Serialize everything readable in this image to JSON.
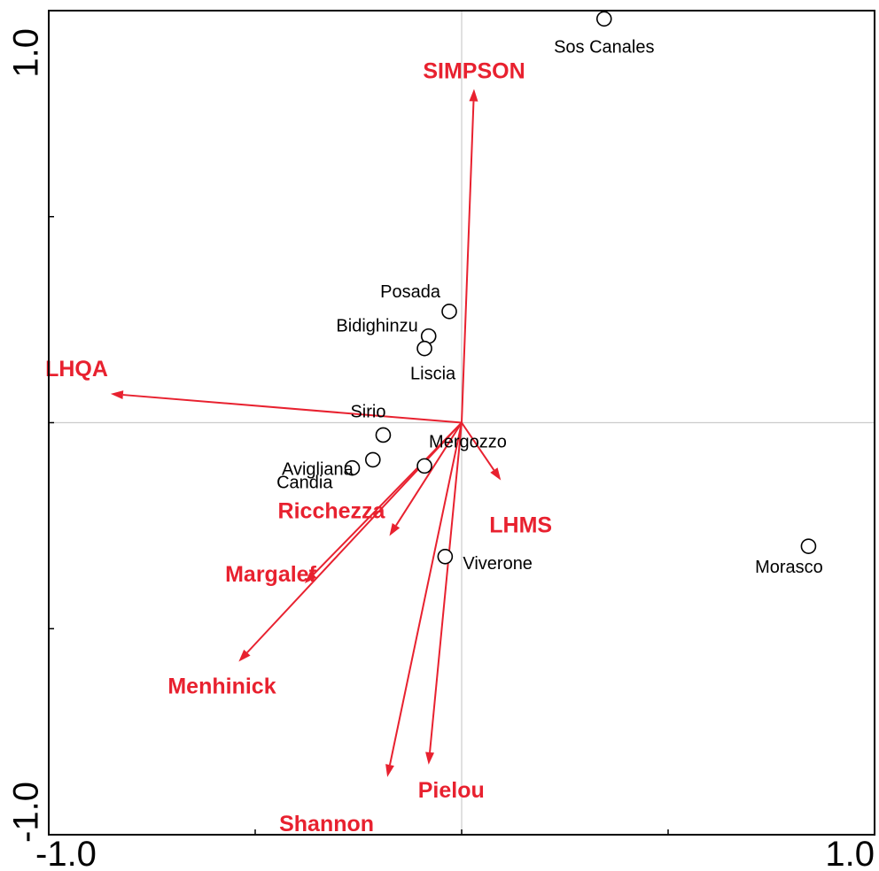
{
  "chart_data": {
    "type": "scatter",
    "subtype": "ordination-biplot",
    "title": "",
    "xlabel": "",
    "ylabel": "",
    "xlim": [
      -1.0,
      1.0
    ],
    "ylim": [
      -1.0,
      1.0
    ],
    "x_tick_labels": [
      {
        "value": -1.0,
        "label": "-1.0"
      },
      {
        "value": 1.0,
        "label": "1.0"
      }
    ],
    "y_tick_labels": [
      {
        "value": 1.0,
        "label": "1.0"
      },
      {
        "value": -1.0,
        "label": "-1.0"
      }
    ],
    "minor_ticks": [
      -0.5,
      0.0,
      0.5
    ],
    "grid": false,
    "origin_lines": true,
    "colors": {
      "sites": "#000000",
      "variables": "#e8212f",
      "axes": "#000000",
      "origin_lines": "#cccccc"
    },
    "sites": [
      {
        "name": "Sos Canales",
        "x": 0.345,
        "y": 0.98
      },
      {
        "name": "Posada",
        "x": -0.03,
        "y": 0.27
      },
      {
        "name": "Bidighinzu",
        "x": -0.08,
        "y": 0.21
      },
      {
        "name": "Liscia",
        "x": -0.09,
        "y": 0.18
      },
      {
        "name": "Sirio",
        "x": -0.19,
        "y": -0.03
      },
      {
        "name": "Avigliana",
        "x": -0.215,
        "y": -0.09
      },
      {
        "name": "Candia",
        "x": -0.265,
        "y": -0.11
      },
      {
        "name": "Mergozzo",
        "x": -0.09,
        "y": -0.105
      },
      {
        "name": "Viverone",
        "x": -0.04,
        "y": -0.325
      },
      {
        "name": "Morasco",
        "x": 0.84,
        "y": -0.3
      }
    ],
    "variables": [
      {
        "name": "SIMPSON",
        "x": 0.03,
        "y": 0.81
      },
      {
        "name": "LHQA",
        "x": -0.85,
        "y": 0.07
      },
      {
        "name": "LHMS",
        "x": 0.095,
        "y": -0.14
      },
      {
        "name": "Ricchezza",
        "x": -0.175,
        "y": -0.275
      },
      {
        "name": "Margalef",
        "x": -0.38,
        "y": -0.39
      },
      {
        "name": "Menhinick",
        "x": -0.54,
        "y": -0.58
      },
      {
        "name": "Shannon",
        "x": -0.18,
        "y": -0.86
      },
      {
        "name": "Pielou",
        "x": -0.08,
        "y": -0.83
      }
    ]
  }
}
